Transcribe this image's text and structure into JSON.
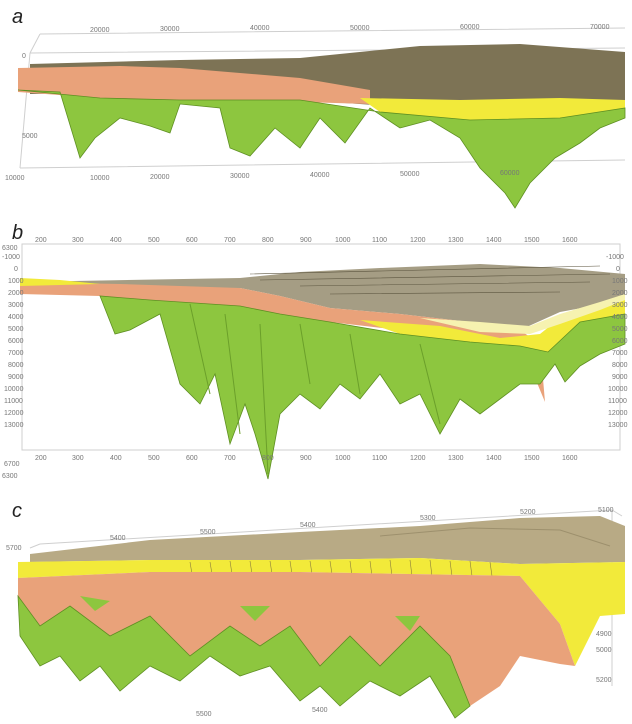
{
  "panels": [
    {
      "label": "a",
      "top_axis": [
        "20000",
        "30000",
        "40000",
        "50000",
        "60000",
        "70000"
      ],
      "bottom_axis": [
        "10000",
        "20000",
        "30000",
        "40000",
        "50000",
        "60000"
      ],
      "left_ticks": [
        "0",
        "5000",
        "10000"
      ]
    },
    {
      "label": "b",
      "top_axis": [
        "200",
        "300",
        "400",
        "500",
        "600",
        "700",
        "800",
        "900",
        "1000",
        "1100",
        "1200",
        "1300",
        "1400",
        "1500",
        "1600"
      ],
      "bottom_axis": [
        "200",
        "300",
        "400",
        "500",
        "600",
        "700",
        "800",
        "900",
        "1000",
        "1100",
        "1200",
        "1300",
        "1400",
        "1500",
        "1600"
      ],
      "left_ticks": [
        "-1000",
        "0",
        "1000",
        "2000",
        "3000",
        "4000",
        "5000",
        "6000",
        "7000",
        "8000",
        "9000",
        "10000",
        "11000",
        "12000",
        "13000"
      ],
      "right_ticks": [
        "-1000",
        "0",
        "1000",
        "2000",
        "3000",
        "4000",
        "5000",
        "6000",
        "7000",
        "8000",
        "9000",
        "10000",
        "11000",
        "12000",
        "13000"
      ],
      "corner_labels": [
        "6300",
        "6700",
        "6300"
      ]
    },
    {
      "label": "c",
      "top_axis": [
        "5400",
        "5500",
        "5400",
        "5300",
        "5200",
        "5100"
      ],
      "left_tick": "5700",
      "right_ticks": [
        "4900",
        "5000",
        "5200"
      ],
      "bottom_axis": [
        "5500",
        "5400"
      ]
    }
  ],
  "colors": {
    "green": "#8dc63f",
    "green_dark": "#5e8f22",
    "salmon": "#e9a27a",
    "yellow": "#f2ea3a",
    "pale_yellow": "#f6f2b0",
    "olive_top": "#7d7355",
    "tan_top": "#b8aa85"
  }
}
